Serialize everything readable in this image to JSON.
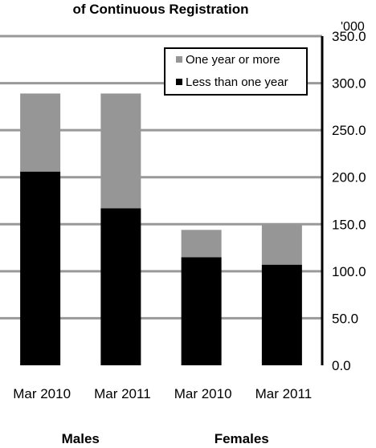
{
  "chart_data": {
    "type": "bar",
    "stacked": true,
    "title": "of Continuous Registration",
    "y_unit_label": "'000",
    "ylim": [
      0,
      350
    ],
    "y_ticks": [
      "0.0",
      "50.0",
      "100.0",
      "150.0",
      "200.0",
      "250.0",
      "300.0",
      "350.0"
    ],
    "y_tick_values": [
      0,
      50,
      100,
      150,
      200,
      250,
      300,
      350
    ],
    "y_axis_side": "right",
    "grid": true,
    "categories": [
      "Mar 2010",
      "Mar 2011",
      "Mar 2010",
      "Mar 2011"
    ],
    "groups": [
      {
        "label": "Males",
        "categories": [
          0,
          1
        ]
      },
      {
        "label": "Females",
        "categories": [
          2,
          3
        ]
      }
    ],
    "series": [
      {
        "name": "Less than one year",
        "color": "#000000",
        "values": [
          206,
          167,
          115,
          107
        ]
      },
      {
        "name": "One year or more",
        "color": "#969696",
        "values": [
          83,
          122,
          29,
          42
        ]
      }
    ],
    "legend": {
      "placement": "top-right",
      "order": [
        "One year or more",
        "Less than one year"
      ]
    }
  }
}
